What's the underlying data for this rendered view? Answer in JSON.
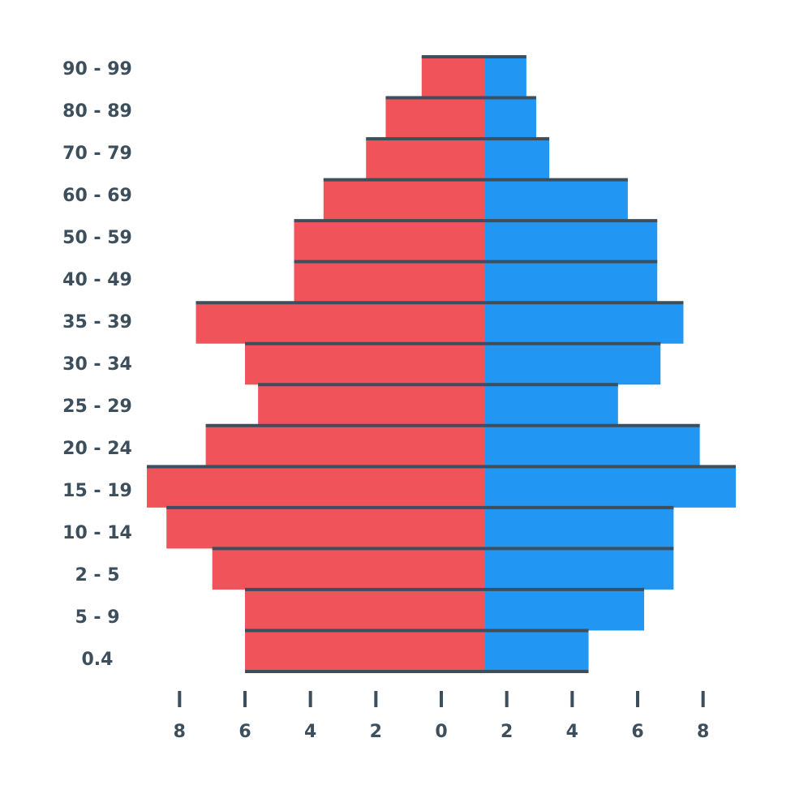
{
  "chart_data": {
    "type": "pyramid",
    "categories": [
      "90 - 99",
      "80 - 89",
      "70 - 79",
      "60 - 69",
      "50 - 59",
      "40 - 49",
      "35 - 39",
      "30 - 34",
      "25 - 29",
      "20 - 24",
      "15 - 19",
      "10 - 14",
      "2 - 5",
      "5 - 9",
      "0.4"
    ],
    "series": [
      {
        "color": "#f0545a",
        "side": "left",
        "values": [
          0.6,
          1.7,
          2.3,
          3.6,
          4.5,
          4.5,
          7.5,
          6.0,
          5.6,
          7.2,
          9.0,
          8.4,
          7.0,
          6.0,
          6.0
        ]
      },
      {
        "color": "#2196f3",
        "side": "right",
        "values": [
          2.6,
          2.9,
          3.3,
          5.7,
          6.6,
          6.6,
          7.4,
          6.7,
          5.4,
          7.9,
          9.0,
          7.1,
          7.1,
          6.2,
          4.5
        ]
      }
    ],
    "xlim": [
      -9,
      9
    ],
    "xticks": [
      {
        "value": -8,
        "label": "8"
      },
      {
        "value": -6,
        "label": "6"
      },
      {
        "value": -4,
        "label": "4"
      },
      {
        "value": -2,
        "label": "2"
      },
      0,
      2,
      4,
      6,
      8
    ]
  }
}
